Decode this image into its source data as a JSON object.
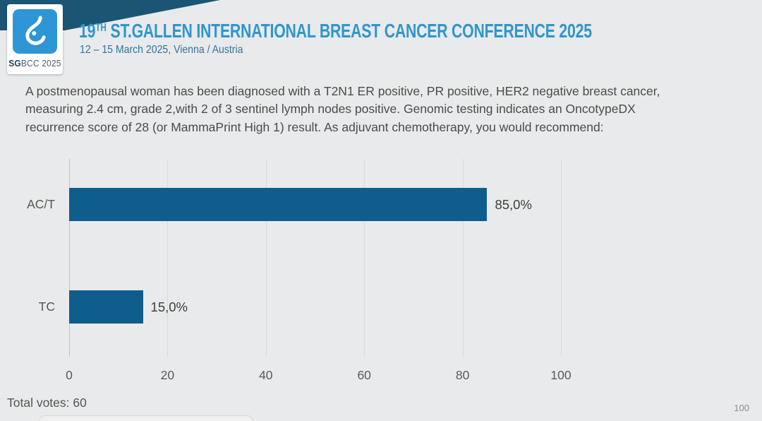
{
  "header": {
    "logo_sg": "SG",
    "logo_rest": "BCC 2025",
    "logo_icon": "sgbcc-breast-icon",
    "title_num": "19",
    "title_sup": "TH",
    "title_rest": " ST.GALLEN INTERNATIONAL BREAST CANCER CONFERENCE 2025",
    "subtitle": "12 – 15 March 2025, Vienna / Austria"
  },
  "question": {
    "text": "A postmenopausal woman has been diagnosed with a T2N1 ER positive, PR positive, HER2 negative breast cancer, measuring 2.4 cm, grade 2,with 2 of 3 sentinel lymph nodes positive.  Genomic testing indicates an OncotypeDX recurrence score of 28 (or MammaPrint High 1) result.  As adjuvant chemotherapy, you would recommend:",
    "answer_options": [
      "AC/T",
      "TC"
    ]
  },
  "chart_data": {
    "type": "bar",
    "orientation": "horizontal",
    "title": "",
    "xlabel": "",
    "ylabel": "",
    "categories": [
      "AC/T",
      "TC"
    ],
    "values": [
      85.0,
      15.0
    ],
    "value_labels": [
      "85,0%",
      "15,0%"
    ],
    "xlim": [
      0,
      100
    ],
    "x_ticks": [
      0,
      20,
      40,
      60,
      80,
      100
    ],
    "grid": true,
    "legend": false,
    "bar_color": "#0e5d8c"
  },
  "footer": {
    "total_votes": "Total votes: 60",
    "page_number": "100"
  },
  "colors": {
    "background": "#e9eaeb",
    "bar": "#0e5d8c",
    "title_blue": "#2e96cf",
    "band": "#1a5674",
    "logo_blue": "#2e96d4",
    "gridline": "#d9dadb"
  }
}
